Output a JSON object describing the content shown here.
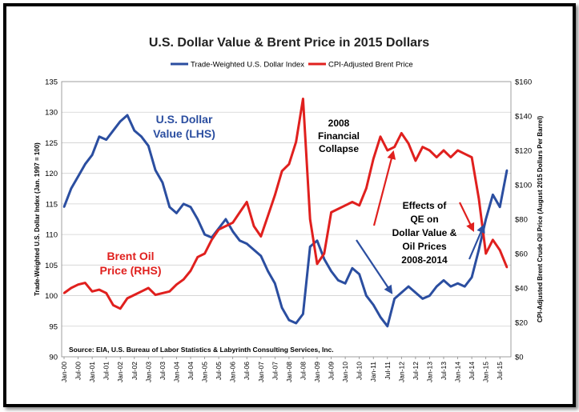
{
  "chart_data": {
    "type": "line",
    "title": "U.S. Dollar Value & Brent Price in 2015 Dollars",
    "ylabel_left": "Trade-Weighted U.S. Dollar Index (Jan. 1997 = 100)",
    "ylabel_right": "CPI-Adjusted Brent Crude Oil Price (August 2015 Dollars Per Barrel)",
    "ylim_left": [
      90,
      135
    ],
    "ylim_right": [
      0,
      160
    ],
    "yticks_left": [
      "90",
      "95",
      "100",
      "105",
      "110",
      "115",
      "120",
      "125",
      "130",
      "135"
    ],
    "yticks_right": [
      "$0",
      "$20",
      "$40",
      "$60",
      "$80",
      "$100",
      "$120",
      "$140",
      "$160"
    ],
    "xticks": [
      "Jan-00",
      "Jul-00",
      "Jan-01",
      "Jul-01",
      "Jan-02",
      "Jul-02",
      "Jan-03",
      "Jul-03",
      "Jan-04",
      "Jul-04",
      "Jan-05",
      "Jul-05",
      "Jan-06",
      "Jul-06",
      "Jan-07",
      "Jul-07",
      "Jan-08",
      "Jul-08",
      "Jan-09",
      "Jul-09",
      "Jan-10",
      "Jul-10",
      "Jan-11",
      "Jul-11",
      "Jan-12",
      "Jul-12",
      "Jan-13",
      "Jul-13",
      "Jan-14",
      "Jul-14",
      "Jan-15",
      "Jul-15"
    ],
    "grid": "horizontal",
    "legend_position": "top",
    "series": [
      {
        "name": "Trade-Weighted U.S. Dollar Index",
        "axis": "left",
        "color": "#2b4ea0",
        "x": [
          "Jan-00",
          "Apr-00",
          "Jul-00",
          "Oct-00",
          "Jan-01",
          "Apr-01",
          "Jul-01",
          "Oct-01",
          "Jan-02",
          "Apr-02",
          "Jul-02",
          "Oct-02",
          "Jan-03",
          "Apr-03",
          "Jul-03",
          "Oct-03",
          "Jan-04",
          "Apr-04",
          "Jul-04",
          "Oct-04",
          "Jan-05",
          "Apr-05",
          "Jul-05",
          "Oct-05",
          "Jan-06",
          "Apr-06",
          "Jul-06",
          "Oct-06",
          "Jan-07",
          "Apr-07",
          "Jul-07",
          "Oct-07",
          "Jan-08",
          "Apr-08",
          "Jul-08",
          "Oct-08",
          "Jan-09",
          "Apr-09",
          "Jul-09",
          "Oct-09",
          "Jan-10",
          "Apr-10",
          "Jul-10",
          "Oct-10",
          "Jan-11",
          "Apr-11",
          "Jul-11",
          "Oct-11",
          "Jan-12",
          "Apr-12",
          "Jul-12",
          "Oct-12",
          "Jan-13",
          "Apr-13",
          "Jul-13",
          "Oct-13",
          "Jan-14",
          "Apr-14",
          "Jul-14",
          "Oct-14",
          "Jan-15",
          "Apr-15",
          "Jul-15",
          "Oct-15"
        ],
        "values": [
          114.5,
          117.5,
          119.5,
          121.5,
          123,
          126,
          125.5,
          127,
          128.5,
          129.5,
          127,
          126,
          124.5,
          120.5,
          118.5,
          114.5,
          113.5,
          115,
          114.5,
          112.5,
          110,
          109.5,
          111,
          112.5,
          110.5,
          109,
          108.5,
          107.5,
          106.5,
          104,
          102,
          98,
          96,
          95.5,
          97,
          108,
          109,
          106,
          104,
          102.5,
          102,
          104.5,
          103.5,
          100,
          98.5,
          96.5,
          95,
          99.5,
          100.5,
          101.5,
          100.5,
          99.5,
          100,
          101.5,
          102.5,
          101.5,
          102,
          101.5,
          103,
          107.5,
          112.5,
          116.5,
          114.5,
          120.5
        ]
      },
      {
        "name": "CPI-Adjusted Brent Price",
        "axis": "right",
        "color": "#e0201e",
        "x": [
          "Jan-00",
          "Apr-00",
          "Jul-00",
          "Oct-00",
          "Jan-01",
          "Apr-01",
          "Jul-01",
          "Oct-01",
          "Jan-02",
          "Apr-02",
          "Jul-02",
          "Oct-02",
          "Jan-03",
          "Apr-03",
          "Jul-03",
          "Oct-03",
          "Jan-04",
          "Apr-04",
          "Jul-04",
          "Oct-04",
          "Jan-05",
          "Apr-05",
          "Jul-05",
          "Oct-05",
          "Jan-06",
          "Apr-06",
          "Jul-06",
          "Oct-06",
          "Jan-07",
          "Apr-07",
          "Jul-07",
          "Oct-07",
          "Jan-08",
          "Apr-08",
          "Jul-08",
          "Oct-08",
          "Jan-09",
          "Apr-09",
          "Jul-09",
          "Oct-09",
          "Jan-10",
          "Apr-10",
          "Jul-10",
          "Oct-10",
          "Jan-11",
          "Apr-11",
          "Jul-11",
          "Oct-11",
          "Jan-12",
          "Apr-12",
          "Jul-12",
          "Oct-12",
          "Jan-13",
          "Apr-13",
          "Jul-13",
          "Oct-13",
          "Jan-14",
          "Apr-14",
          "Jul-14",
          "Oct-14",
          "Jan-15",
          "Apr-15",
          "Jul-15",
          "Oct-15"
        ],
        "values": [
          37,
          40,
          42,
          43,
          38,
          39,
          37,
          30,
          28,
          34,
          36,
          38,
          40,
          36,
          37,
          38,
          42,
          45,
          50,
          58,
          60,
          68,
          74,
          76,
          78,
          84,
          90,
          76,
          70,
          82,
          94,
          108,
          112,
          125,
          150,
          80,
          54,
          60,
          84,
          86,
          88,
          90,
          88,
          98,
          115,
          128,
          120,
          122,
          130,
          124,
          114,
          122,
          120,
          116,
          120,
          116,
          120,
          118,
          116,
          92,
          60,
          68,
          62,
          52
        ]
      }
    ],
    "annotations": [
      {
        "text": "U.S. Dollar",
        "color": "#2b4ea0"
      },
      {
        "text": "Value (LHS)",
        "color": "#2b4ea0"
      },
      {
        "text": "Brent Oil",
        "color": "#e0201e"
      },
      {
        "text": "Price (RHS)",
        "color": "#e0201e"
      },
      {
        "text": "2008",
        "color": "#000000"
      },
      {
        "text": "Financial",
        "color": "#000000"
      },
      {
        "text": "Collapse",
        "color": "#000000"
      },
      {
        "text": "Effects of",
        "color": "#000000"
      },
      {
        "text": "QE on",
        "color": "#000000"
      },
      {
        "text": "Dollar Value &",
        "color": "#000000"
      },
      {
        "text": "Oil Prices",
        "color": "#000000"
      },
      {
        "text": "2008-2014",
        "color": "#000000"
      }
    ],
    "source": "Source:  EIA, U.S. Bureau of Labor Statistics & Labyrinth Consulting Services, Inc."
  }
}
